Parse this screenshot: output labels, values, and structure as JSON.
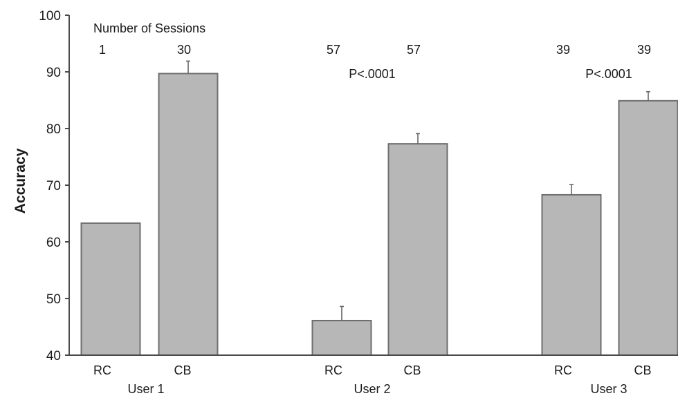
{
  "chart_data": {
    "type": "bar",
    "ylabel": "Accuracy",
    "ylim": [
      40,
      100
    ],
    "yticks": [
      40,
      50,
      60,
      70,
      80,
      90,
      100
    ],
    "sessions_label": "Number of Sessions",
    "groups": [
      {
        "name": "User 1",
        "p_value": "",
        "bars": [
          {
            "label": "RC",
            "value": 63.3,
            "error": 0,
            "sessions": "1"
          },
          {
            "label": "CB",
            "value": 89.7,
            "error": 2.2,
            "sessions": "30"
          }
        ]
      },
      {
        "name": "User 2",
        "p_value": "P<.0001",
        "bars": [
          {
            "label": "RC",
            "value": 46.1,
            "error": 2.5,
            "sessions": "57"
          },
          {
            "label": "CB",
            "value": 77.3,
            "error": 1.8,
            "sessions": "57"
          }
        ]
      },
      {
        "name": "User 3",
        "p_value": "P<.0001",
        "bars": [
          {
            "label": "RC",
            "value": 68.3,
            "error": 1.8,
            "sessions": "39"
          },
          {
            "label": "CB",
            "value": 84.9,
            "error": 1.6,
            "sessions": "39"
          }
        ]
      }
    ],
    "colors": {
      "bar_fill": "#b7b7b7",
      "bar_stroke": "#6e6e6e",
      "axis": "#4a4a4a"
    }
  }
}
